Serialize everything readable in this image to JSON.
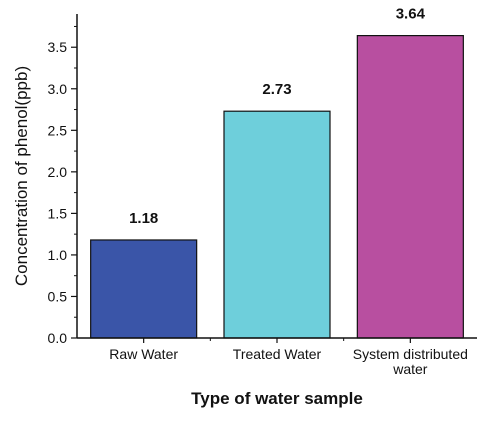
{
  "chart_data": {
    "type": "bar",
    "categories": [
      [
        "Raw Water"
      ],
      [
        "Treated Water"
      ],
      [
        "System distributed",
        "water"
      ]
    ],
    "values": [
      1.18,
      2.73,
      3.64
    ],
    "data_labels": [
      "1.18",
      "2.73",
      "3.64"
    ],
    "colors": [
      "#3a55a8",
      "#6ecfdb",
      "#b84fa0"
    ],
    "xlabel": "Type of water sample",
    "ylabel": "Concentration of phenol(ppb)",
    "ylim": [
      0,
      3.9
    ],
    "yticks": [
      0.0,
      0.5,
      1.0,
      1.5,
      2.0,
      2.5,
      3.0,
      3.5
    ],
    "ytick_labels": [
      "0.0",
      "0.5",
      "1.0",
      "1.5",
      "2.0",
      "2.5",
      "3.0",
      "3.5"
    ],
    "grid": false,
    "legend": "none"
  }
}
